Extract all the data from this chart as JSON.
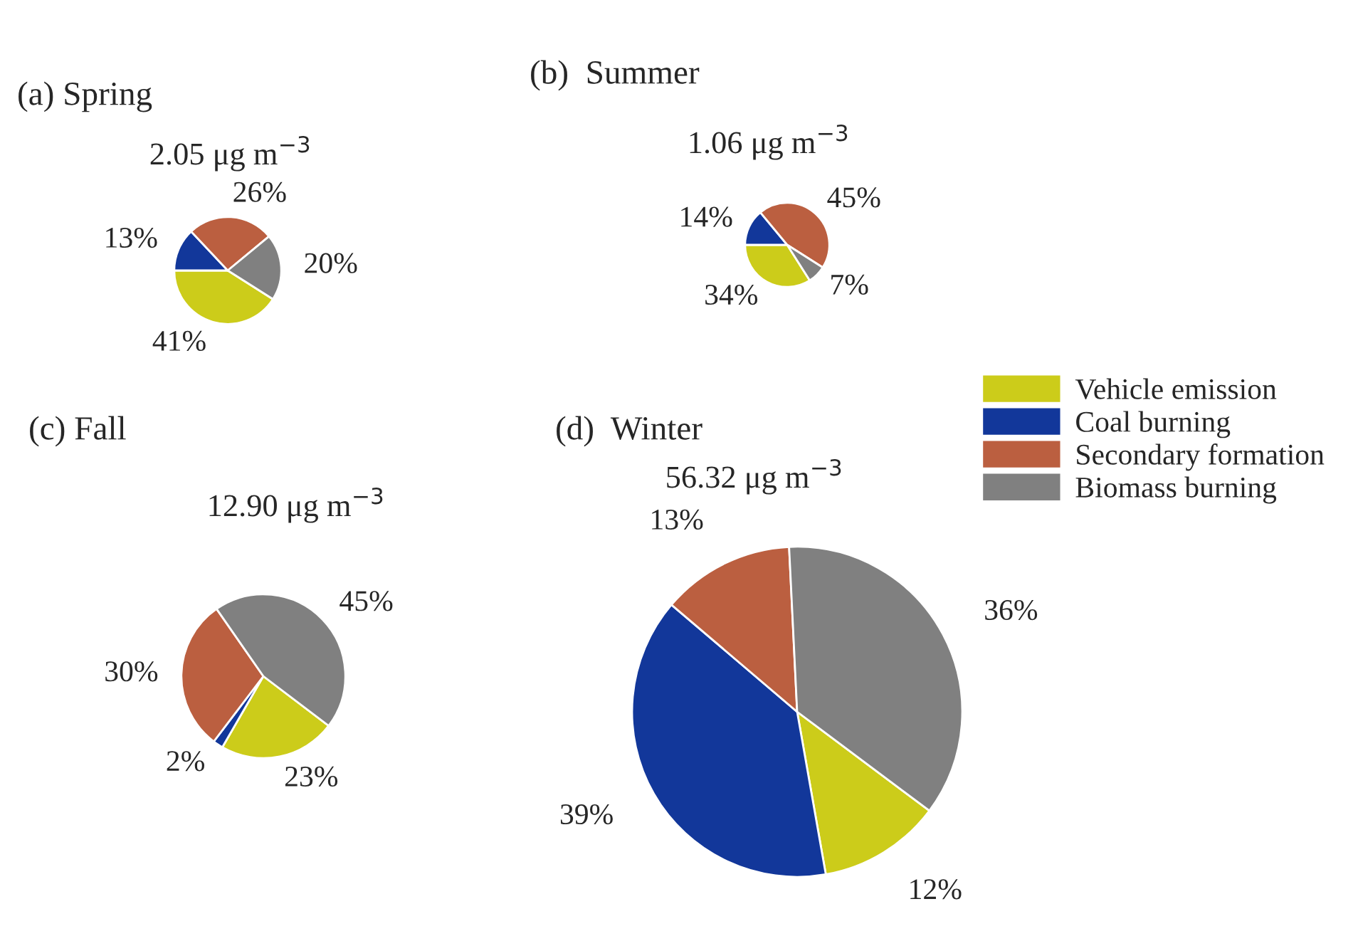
{
  "chart_data": [
    {
      "type": "pie",
      "title": "(a) Spring",
      "subtitle": "2.05 μg m$^{−3}$",
      "categories": [
        "Vehicle emission",
        "Coal burning",
        "Secondary formation",
        "Biomass burning"
      ],
      "values": [
        41,
        13,
        26,
        20
      ],
      "value_labels": [
        "41%",
        "13%",
        "26%",
        "20%"
      ],
      "colors": [
        "#cccc1a",
        "#12379a",
        "#bb5f40",
        "#808080"
      ],
      "legend": "right"
    },
    {
      "type": "pie",
      "title": "(b)  Summer",
      "subtitle": "1.06 μg m$^{−3}$",
      "categories": [
        null,
        null,
        null,
        null
      ],
      "values": [
        34,
        14,
        45,
        7
      ],
      "value_labels": [
        "34%",
        "14%",
        "45%",
        "7%"
      ],
      "colors": [
        "#cccc1a",
        "#12379a",
        "#bb5f40",
        "#808080"
      ],
      "legend": false
    },
    {
      "type": "pie",
      "title": "(c) Fall",
      "subtitle": "12.90 μg m$^{−3}$",
      "categories": [
        null,
        null,
        null,
        null
      ],
      "values": [
        23,
        2,
        30,
        45
      ],
      "value_labels": [
        "23%",
        "2%",
        "30%",
        "45%"
      ],
      "colors": [
        "#cccc1a",
        "#12379a",
        "#bb5f40",
        "#808080"
      ],
      "legend": false
    },
    {
      "type": "pie",
      "title": "(d)  Winter",
      "subtitle": "56.32 μg m$^{−3}$",
      "categories": [
        null,
        null,
        null,
        null
      ],
      "values": [
        12,
        39,
        13,
        36
      ],
      "value_labels": [
        "12%",
        "39%",
        "13%",
        "36%"
      ],
      "colors": [
        "#cccc1a",
        "#12379a",
        "#bb5f40",
        "#808080"
      ],
      "legend": false
    }
  ]
}
